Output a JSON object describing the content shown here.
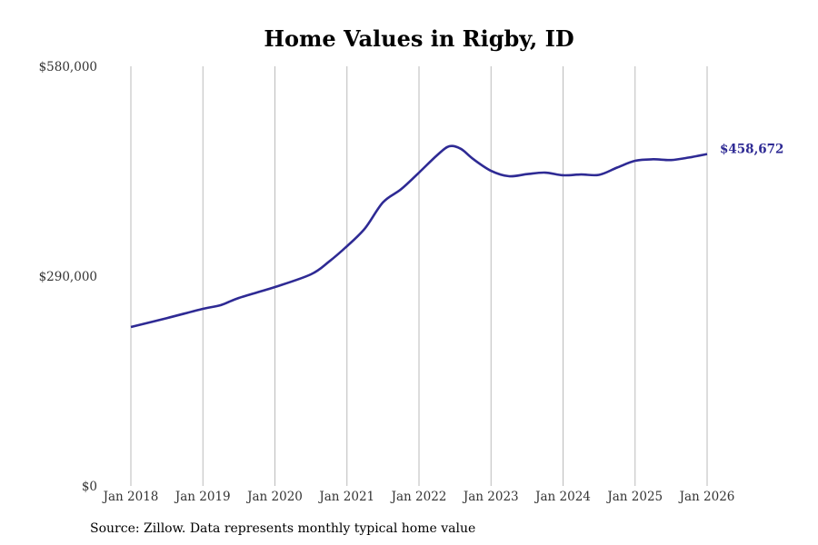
{
  "chart_data": {
    "type": "line",
    "title": "Home Values in Rigby, ID",
    "xlabel": "",
    "ylabel": "",
    "ylim": [
      0,
      580000
    ],
    "xlim": [
      2018,
      2026
    ],
    "y_ticks": [
      {
        "value": 0,
        "label": "$0"
      },
      {
        "value": 290000,
        "label": "$290,000"
      },
      {
        "value": 580000,
        "label": "$580,000"
      }
    ],
    "x_ticks": [
      {
        "value": 2018,
        "label": "Jan 2018"
      },
      {
        "value": 2019,
        "label": "Jan 2019"
      },
      {
        "value": 2020,
        "label": "Jan 2020"
      },
      {
        "value": 2021,
        "label": "Jan 2021"
      },
      {
        "value": 2022,
        "label": "Jan 2022"
      },
      {
        "value": 2023,
        "label": "Jan 2023"
      },
      {
        "value": 2024,
        "label": "Jan 2024"
      },
      {
        "value": 2025,
        "label": "Jan 2025"
      },
      {
        "value": 2026,
        "label": "Jan 2026"
      }
    ],
    "grid": "vertical",
    "series": [
      {
        "name": "Typical home value",
        "color": "#2e2a94",
        "x": [
          2018.0,
          2018.5,
          2019.0,
          2019.25,
          2019.5,
          2020.0,
          2020.5,
          2020.75,
          2021.0,
          2021.25,
          2021.5,
          2021.75,
          2022.0,
          2022.25,
          2022.42,
          2022.58,
          2022.75,
          2023.0,
          2023.25,
          2023.5,
          2023.75,
          2024.0,
          2024.25,
          2024.5,
          2024.75,
          2025.0,
          2025.25,
          2025.5,
          2025.75,
          2026.0
        ],
        "values": [
          219700,
          232000,
          244800,
          250000,
          259900,
          274900,
          292500,
          310000,
          331400,
          356000,
          392000,
          410000,
          433100,
          457000,
          469500,
          466000,
          452000,
          435600,
          428100,
          431000,
          433100,
          429400,
          430500,
          430000,
          440000,
          449400,
          451500,
          450500,
          454000,
          458672
        ]
      }
    ],
    "end_label": "$458,672"
  },
  "source": "Source: Zillow. Data represents monthly typical home value"
}
